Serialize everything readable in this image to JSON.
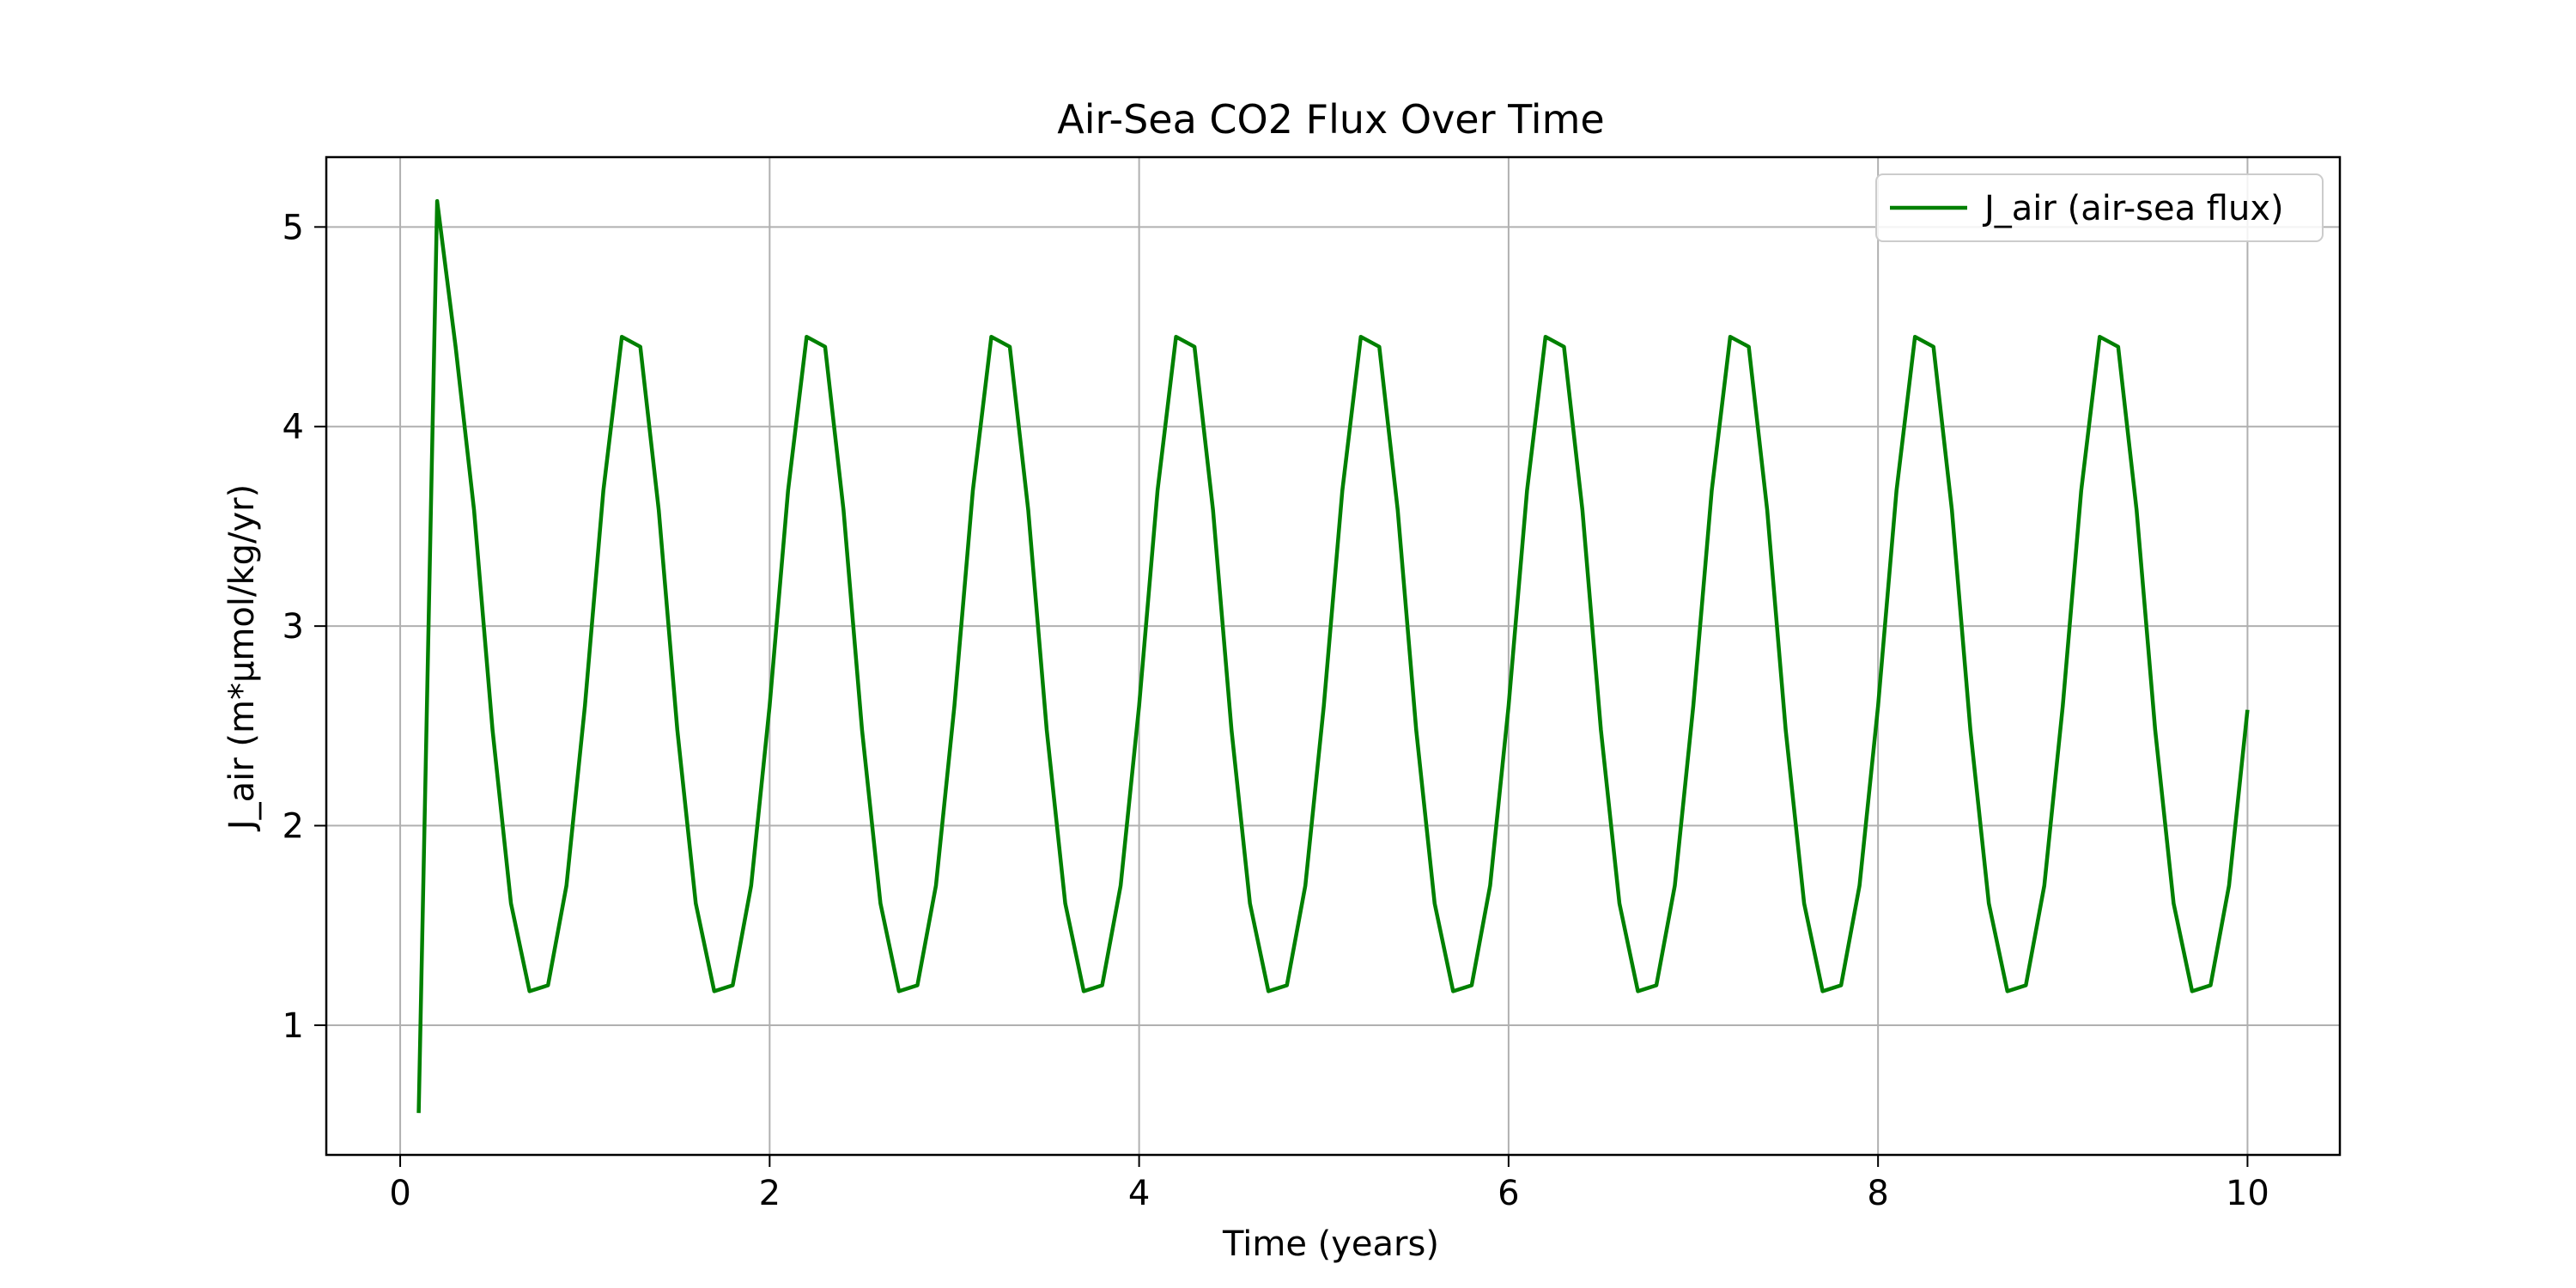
{
  "chart_data": {
    "type": "line",
    "title": "Air-Sea CO2 Flux Over Time",
    "xlabel": "Time (years)",
    "ylabel": "J_air (m*µmol/kg/yr)",
    "xlim": [
      -0.4,
      10.5
    ],
    "ylim": [
      0.35,
      5.35
    ],
    "xticks": [
      0,
      2,
      4,
      6,
      8,
      10
    ],
    "yticks": [
      1,
      2,
      3,
      4,
      5
    ],
    "grid": true,
    "legend_position": "top-right",
    "series": [
      {
        "name": "J_air (air-sea flux)",
        "color": "#008000",
        "x": [
          0.1,
          0.2,
          0.3,
          0.4,
          0.5,
          0.6,
          0.7,
          0.8,
          0.9,
          1.0,
          1.1,
          1.2,
          1.3,
          1.4,
          1.5,
          1.6,
          1.7,
          1.8,
          1.9,
          2.0,
          2.1,
          2.2,
          2.3,
          2.4,
          2.5,
          2.6,
          2.7,
          2.8,
          2.9,
          3.0,
          3.1,
          3.2,
          3.3,
          3.4,
          3.5,
          3.6,
          3.7,
          3.8,
          3.9,
          4.0,
          4.1,
          4.2,
          4.3,
          4.4,
          4.5,
          4.6,
          4.7,
          4.8,
          4.9,
          5.0,
          5.1,
          5.2,
          5.3,
          5.4,
          5.5,
          5.6,
          5.7,
          5.8,
          5.9,
          6.0,
          6.1,
          6.2,
          6.3,
          6.4,
          6.5,
          6.6,
          6.7,
          6.8,
          6.9,
          7.0,
          7.1,
          7.2,
          7.3,
          7.4,
          7.5,
          7.6,
          7.7,
          7.8,
          7.9,
          8.0,
          8.1,
          8.2,
          8.3,
          8.4,
          8.5,
          8.6,
          8.7,
          8.8,
          8.9,
          9.0,
          9.1,
          9.2,
          9.3,
          9.4,
          9.5,
          9.6,
          9.7,
          9.8,
          9.9,
          10.0
        ],
        "y": [
          0.56,
          5.13,
          4.4,
          3.58,
          2.48,
          1.61,
          1.17,
          1.2,
          1.7,
          2.6,
          3.68,
          4.45,
          4.4,
          3.58,
          2.48,
          1.61,
          1.17,
          1.2,
          1.7,
          2.6,
          3.68,
          4.45,
          4.4,
          3.58,
          2.48,
          1.61,
          1.17,
          1.2,
          1.7,
          2.6,
          3.68,
          4.45,
          4.4,
          3.58,
          2.48,
          1.61,
          1.17,
          1.2,
          1.7,
          2.6,
          3.68,
          4.45,
          4.4,
          3.58,
          2.48,
          1.61,
          1.17,
          1.2,
          1.7,
          2.6,
          3.68,
          4.45,
          4.4,
          3.58,
          2.48,
          1.61,
          1.17,
          1.2,
          1.7,
          2.6,
          3.68,
          4.45,
          4.4,
          3.58,
          2.48,
          1.61,
          1.17,
          1.2,
          1.7,
          2.6,
          3.68,
          4.45,
          4.4,
          3.58,
          2.48,
          1.61,
          1.17,
          1.2,
          1.7,
          2.6,
          3.68,
          4.45,
          4.4,
          3.58,
          2.48,
          1.61,
          1.17,
          1.2,
          1.7,
          2.6,
          3.68,
          4.45,
          4.4,
          3.58,
          2.48,
          1.61,
          1.17,
          1.2,
          1.7,
          2.58
        ]
      }
    ]
  }
}
